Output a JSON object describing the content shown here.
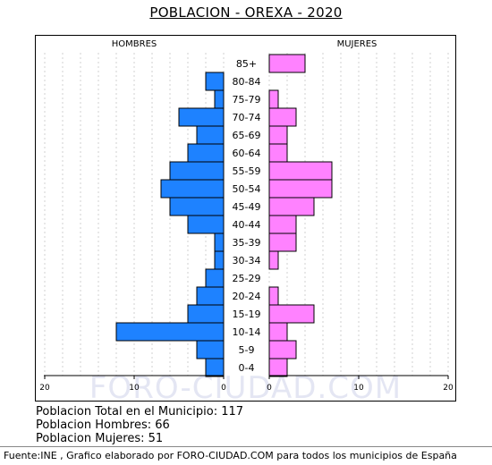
{
  "title": "POBLACION - OREXA - 2020",
  "watermark": "FORO-CIUDAD.COM",
  "stats": {
    "total": "Poblacion Total en el Municipio: 117",
    "hombres": "Poblacion Hombres: 66",
    "mujeres": "Poblacion Mujeres: 51"
  },
  "footer": "Fuente:INE , Grafico elaborado por FORO-CIUDAD.COM para todos los municipios de España",
  "chart_data": {
    "type": "bar",
    "orientation": "horizontal-pyramid",
    "left_label": "HOMBRES",
    "right_label": "MUJERES",
    "categories": [
      "85+",
      "80-84",
      "75-79",
      "70-74",
      "65-69",
      "60-64",
      "55-59",
      "50-54",
      "45-49",
      "40-44",
      "35-39",
      "30-34",
      "25-29",
      "20-24",
      "15-19",
      "10-14",
      "5-9",
      "0-4"
    ],
    "series": [
      {
        "name": "HOMBRES",
        "color": "#1e82ff",
        "values": [
          0,
          2,
          1,
          5,
          3,
          4,
          6,
          7,
          6,
          4,
          1,
          1,
          2,
          3,
          4,
          12,
          3,
          2
        ]
      },
      {
        "name": "MUJERES",
        "color": "#ff82ff",
        "values": [
          4,
          0,
          1,
          3,
          2,
          2,
          7,
          7,
          5,
          3,
          3,
          1,
          0,
          1,
          5,
          2,
          3,
          2
        ]
      }
    ],
    "xlim": [
      0,
      20
    ],
    "ticks": [
      "20",
      "10",
      "0",
      "0",
      "10",
      "20"
    ],
    "grid": true
  }
}
